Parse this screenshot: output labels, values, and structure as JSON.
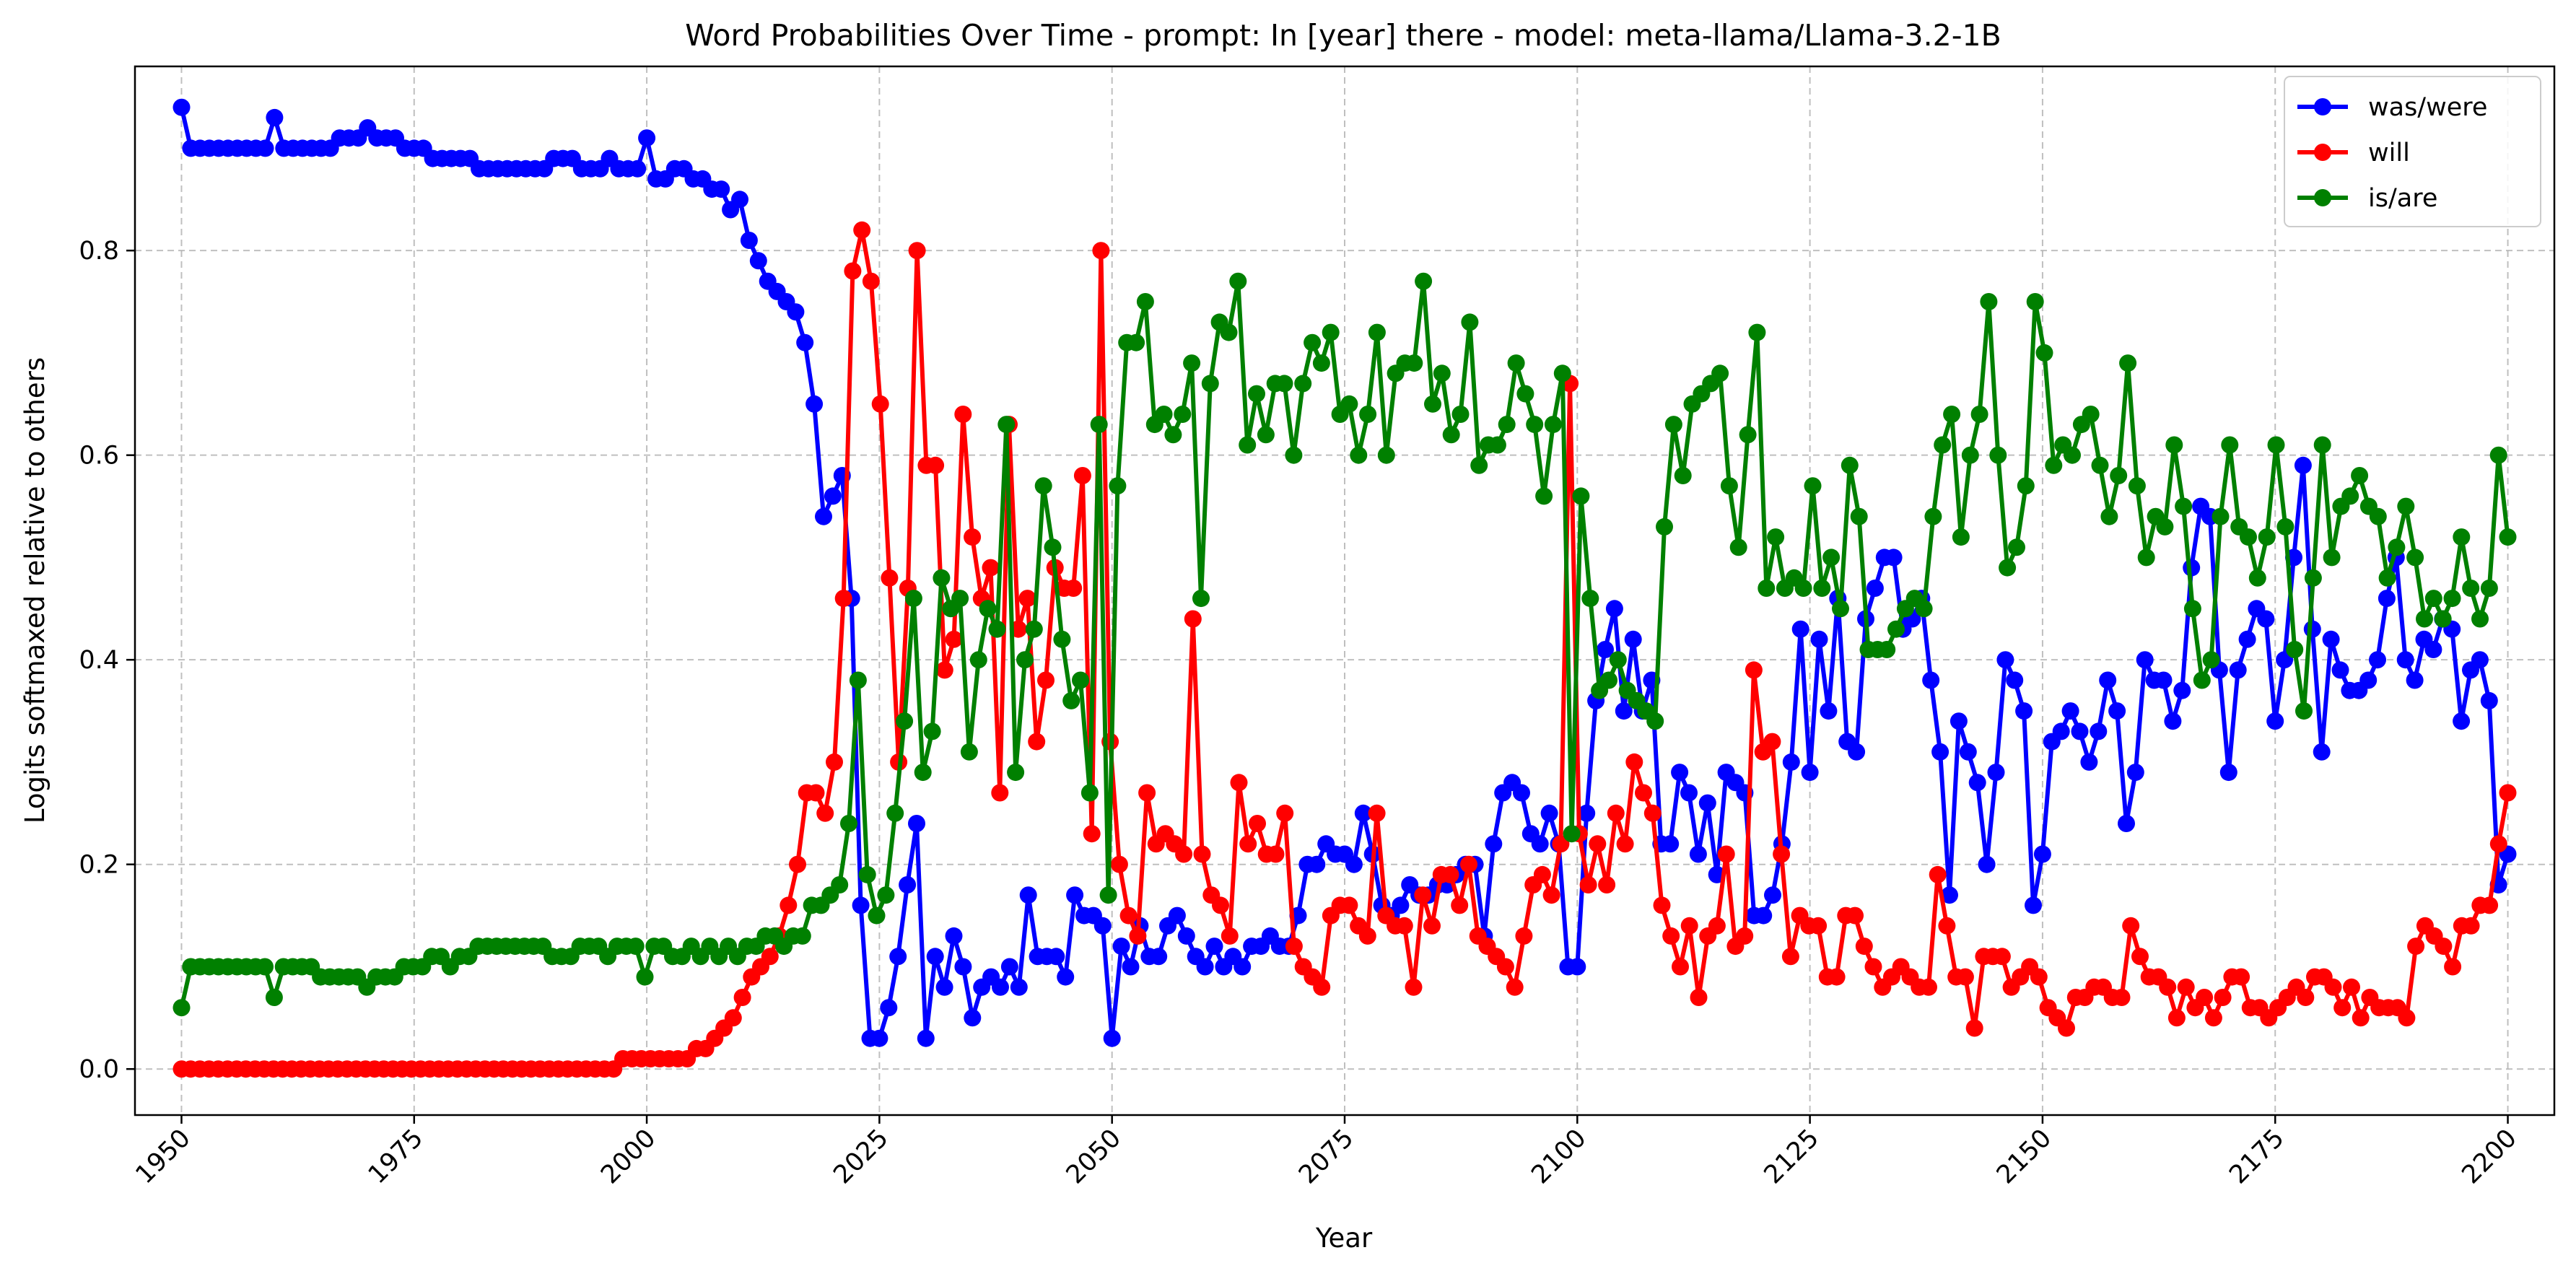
{
  "chart_data": {
    "type": "line",
    "title": "Word Probabilities Over Time - prompt: In [year] there - model: meta-llama/Llama-3.2-1B",
    "xlabel": "Year",
    "ylabel": "Logits softmaxed relative to others",
    "xlim": [
      1945,
      2205
    ],
    "ylim": [
      -0.045,
      0.98
    ],
    "xticks": [
      1950,
      1975,
      2000,
      2025,
      2050,
      2075,
      2100,
      2125,
      2150,
      2175,
      2200
    ],
    "xtick_labels": [
      "1950",
      "1975",
      "2000",
      "2025",
      "2050",
      "2075",
      "2100",
      "2125",
      "2150",
      "2175",
      "2200"
    ],
    "yticks": [
      0.0,
      0.2,
      0.4,
      0.6,
      0.8
    ],
    "ytick_labels": [
      "0.0",
      "0.2",
      "0.4",
      "0.6",
      "0.8"
    ],
    "grid": true,
    "legend": "top-right",
    "x_start": 1950,
    "x_end": 2200,
    "series": [
      {
        "name": "was/were",
        "color": "#0000ff",
        "values": [
          0.94,
          0.9,
          0.9,
          0.9,
          0.9,
          0.9,
          0.9,
          0.9,
          0.9,
          0.9,
          0.93,
          0.9,
          0.9,
          0.9,
          0.9,
          0.9,
          0.9,
          0.91,
          0.91,
          0.91,
          0.92,
          0.91,
          0.91,
          0.91,
          0.9,
          0.9,
          0.9,
          0.89,
          0.89,
          0.89,
          0.89,
          0.89,
          0.88,
          0.88,
          0.88,
          0.88,
          0.88,
          0.88,
          0.88,
          0.88,
          0.89,
          0.89,
          0.89,
          0.88,
          0.88,
          0.88,
          0.89,
          0.88,
          0.88,
          0.88,
          0.91,
          0.87,
          0.87,
          0.88,
          0.88,
          0.87,
          0.87,
          0.86,
          0.86,
          0.84,
          0.85,
          0.81,
          0.79,
          0.77,
          0.76,
          0.75,
          0.74,
          0.71,
          0.65,
          0.54,
          0.56,
          0.58,
          0.46,
          0.16,
          0.03,
          0.03,
          0.06,
          0.11,
          0.18,
          0.24,
          0.03,
          0.11,
          0.08,
          0.13,
          0.1,
          0.05,
          0.08,
          0.09,
          0.08,
          0.1,
          0.08,
          0.17,
          0.11,
          0.11,
          0.11,
          0.09,
          0.17,
          0.15,
          0.15,
          0.14,
          0.03,
          0.12,
          0.1,
          0.14,
          0.11,
          0.11,
          0.14,
          0.15,
          0.13,
          0.11,
          0.1,
          0.12,
          0.1,
          0.11,
          0.1,
          0.12,
          0.12,
          0.13,
          0.12,
          0.12,
          0.15,
          0.2,
          0.2,
          0.22,
          0.21,
          0.21,
          0.2,
          0.25,
          0.21,
          0.16,
          0.15,
          0.16,
          0.18,
          0.17,
          0.17,
          0.18,
          0.18,
          0.19,
          0.2,
          0.2,
          0.13,
          0.22,
          0.27,
          0.28,
          0.27,
          0.23,
          0.22,
          0.25,
          0.22,
          0.1,
          0.1,
          0.25,
          0.36,
          0.41,
          0.45,
          0.35,
          0.42,
          0.35,
          0.38,
          0.22,
          0.22,
          0.29,
          0.27,
          0.21,
          0.26,
          0.19,
          0.29,
          0.28,
          0.27,
          0.15,
          0.15,
          0.17,
          0.22,
          0.3,
          0.43,
          0.29,
          0.42,
          0.35,
          0.46,
          0.32,
          0.31,
          0.44,
          0.47,
          0.5,
          0.5,
          0.43,
          0.44,
          0.46,
          0.38,
          0.31,
          0.17,
          0.34,
          0.31,
          0.28,
          0.2,
          0.29,
          0.4,
          0.38,
          0.35,
          0.16,
          0.21,
          0.32,
          0.33,
          0.35,
          0.33,
          0.3,
          0.33,
          0.38,
          0.35,
          0.24,
          0.29,
          0.4,
          0.38,
          0.38,
          0.34,
          0.37,
          0.49,
          0.55,
          0.54,
          0.39,
          0.29,
          0.39,
          0.42,
          0.45,
          0.44,
          0.34,
          0.4,
          0.5,
          0.59,
          0.43,
          0.31,
          0.42,
          0.39,
          0.37,
          0.37,
          0.38,
          0.4,
          0.46,
          0.5,
          0.4,
          0.38,
          0.42,
          0.41,
          0.44,
          0.43,
          0.34,
          0.39,
          0.4,
          0.36,
          0.18,
          0.21
        ]
      },
      {
        "name": "will",
        "color": "#ff0000",
        "values": [
          0.0,
          0.0,
          0.0,
          0.0,
          0.0,
          0.0,
          0.0,
          0.0,
          0.0,
          0.0,
          0.0,
          0.0,
          0.0,
          0.0,
          0.0,
          0.0,
          0.0,
          0.0,
          0.0,
          0.0,
          0.0,
          0.0,
          0.0,
          0.0,
          0.0,
          0.0,
          0.0,
          0.0,
          0.0,
          0.0,
          0.0,
          0.0,
          0.0,
          0.0,
          0.0,
          0.0,
          0.0,
          0.0,
          0.0,
          0.0,
          0.0,
          0.0,
          0.0,
          0.0,
          0.0,
          0.0,
          0.0,
          0.0,
          0.01,
          0.01,
          0.01,
          0.01,
          0.01,
          0.01,
          0.01,
          0.01,
          0.02,
          0.02,
          0.03,
          0.04,
          0.05,
          0.07,
          0.09,
          0.1,
          0.11,
          0.13,
          0.16,
          0.2,
          0.27,
          0.27,
          0.25,
          0.3,
          0.46,
          0.78,
          0.82,
          0.77,
          0.65,
          0.48,
          0.3,
          0.47,
          0.8,
          0.59,
          0.59,
          0.39,
          0.42,
          0.64,
          0.52,
          0.46,
          0.49,
          0.27,
          0.63,
          0.43,
          0.46,
          0.32,
          0.38,
          0.49,
          0.47,
          0.47,
          0.58,
          0.23,
          0.8,
          0.32,
          0.2,
          0.15,
          0.13,
          0.27,
          0.22,
          0.23,
          0.22,
          0.21,
          0.44,
          0.21,
          0.17,
          0.16,
          0.13,
          0.28,
          0.22,
          0.24,
          0.21,
          0.21,
          0.25,
          0.12,
          0.1,
          0.09,
          0.08,
          0.15,
          0.16,
          0.16,
          0.14,
          0.13,
          0.25,
          0.15,
          0.14,
          0.14,
          0.08,
          0.17,
          0.14,
          0.19,
          0.19,
          0.16,
          0.2,
          0.13,
          0.12,
          0.11,
          0.1,
          0.08,
          0.13,
          0.18,
          0.19,
          0.17,
          0.22,
          0.67,
          0.23,
          0.18,
          0.22,
          0.18,
          0.25,
          0.22,
          0.3,
          0.27,
          0.25,
          0.16,
          0.13,
          0.1,
          0.14,
          0.07,
          0.13,
          0.14,
          0.21,
          0.12,
          0.13,
          0.39,
          0.31,
          0.32,
          0.21,
          0.11,
          0.15,
          0.14,
          0.14,
          0.09,
          0.09,
          0.15,
          0.15,
          0.12,
          0.1,
          0.08,
          0.09,
          0.1,
          0.09,
          0.08,
          0.08,
          0.19,
          0.14,
          0.09,
          0.09,
          0.04,
          0.11,
          0.11,
          0.11,
          0.08,
          0.09,
          0.1,
          0.09,
          0.06,
          0.05,
          0.04,
          0.07,
          0.07,
          0.08,
          0.08,
          0.07,
          0.07,
          0.14,
          0.11,
          0.09,
          0.09,
          0.08,
          0.05,
          0.08,
          0.06,
          0.07,
          0.05,
          0.07,
          0.09,
          0.09,
          0.06,
          0.06,
          0.05,
          0.06,
          0.07,
          0.08,
          0.07,
          0.09,
          0.09,
          0.08,
          0.06,
          0.08,
          0.05,
          0.07,
          0.06,
          0.06,
          0.06,
          0.05,
          0.12,
          0.14,
          0.13,
          0.12,
          0.1,
          0.14,
          0.14,
          0.16,
          0.16,
          0.22,
          0.27
        ]
      },
      {
        "name": "is/are",
        "color": "#008000",
        "values": [
          0.06,
          0.1,
          0.1,
          0.1,
          0.1,
          0.1,
          0.1,
          0.1,
          0.1,
          0.1,
          0.07,
          0.1,
          0.1,
          0.1,
          0.1,
          0.09,
          0.09,
          0.09,
          0.09,
          0.09,
          0.08,
          0.09,
          0.09,
          0.09,
          0.1,
          0.1,
          0.1,
          0.11,
          0.11,
          0.1,
          0.11,
          0.11,
          0.12,
          0.12,
          0.12,
          0.12,
          0.12,
          0.12,
          0.12,
          0.12,
          0.11,
          0.11,
          0.11,
          0.12,
          0.12,
          0.12,
          0.11,
          0.12,
          0.12,
          0.12,
          0.09,
          0.12,
          0.12,
          0.11,
          0.11,
          0.12,
          0.11,
          0.12,
          0.11,
          0.12,
          0.11,
          0.12,
          0.12,
          0.13,
          0.13,
          0.12,
          0.13,
          0.13,
          0.16,
          0.16,
          0.17,
          0.18,
          0.24,
          0.38,
          0.19,
          0.15,
          0.17,
          0.25,
          0.34,
          0.46,
          0.29,
          0.33,
          0.48,
          0.45,
          0.46,
          0.31,
          0.4,
          0.45,
          0.43,
          0.63,
          0.29,
          0.4,
          0.43,
          0.57,
          0.51,
          0.42,
          0.36,
          0.38,
          0.27,
          0.63,
          0.17,
          0.57,
          0.71,
          0.71,
          0.75,
          0.63,
          0.64,
          0.62,
          0.64,
          0.69,
          0.46,
          0.67,
          0.73,
          0.72,
          0.77,
          0.61,
          0.66,
          0.62,
          0.67,
          0.67,
          0.6,
          0.67,
          0.71,
          0.69,
          0.72,
          0.64,
          0.65,
          0.6,
          0.64,
          0.72,
          0.6,
          0.68,
          0.69,
          0.69,
          0.77,
          0.65,
          0.68,
          0.62,
          0.64,
          0.73,
          0.59,
          0.61,
          0.61,
          0.63,
          0.69,
          0.66,
          0.63,
          0.56,
          0.63,
          0.68,
          0.23,
          0.56,
          0.46,
          0.37,
          0.38,
          0.4,
          0.37,
          0.36,
          0.35,
          0.34,
          0.53,
          0.63,
          0.58,
          0.65,
          0.66,
          0.67,
          0.68,
          0.57,
          0.51,
          0.62,
          0.72,
          0.47,
          0.52,
          0.47,
          0.48,
          0.47,
          0.57,
          0.47,
          0.5,
          0.45,
          0.59,
          0.54,
          0.41,
          0.41,
          0.41,
          0.43,
          0.45,
          0.46,
          0.45,
          0.54,
          0.61,
          0.64,
          0.52,
          0.6,
          0.64,
          0.75,
          0.6,
          0.49,
          0.51,
          0.57,
          0.75,
          0.7,
          0.59,
          0.61,
          0.6,
          0.63,
          0.64,
          0.59,
          0.54,
          0.58,
          0.69,
          0.57,
          0.5,
          0.54,
          0.53,
          0.61,
          0.55,
          0.45,
          0.38,
          0.4,
          0.54,
          0.61,
          0.53,
          0.52,
          0.48,
          0.52,
          0.61,
          0.53,
          0.41,
          0.35,
          0.48,
          0.61,
          0.5,
          0.55,
          0.56,
          0.58,
          0.55,
          0.54,
          0.48,
          0.51,
          0.55,
          0.5,
          0.44,
          0.46,
          0.44,
          0.46,
          0.52,
          0.47,
          0.44,
          0.47,
          0.6,
          0.52
        ]
      }
    ]
  }
}
